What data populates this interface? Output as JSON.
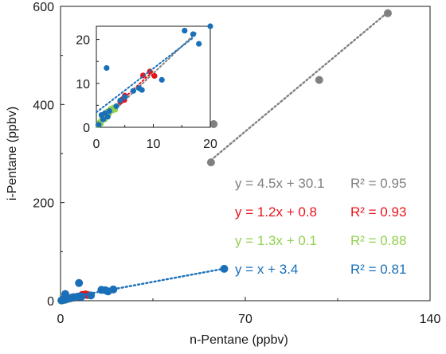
{
  "chart_data": {
    "type": "scatter",
    "xlabel": "n-Pentane  (ppbv)",
    "ylabel": "i-Pentane  (ppbv)",
    "xlim": [
      0,
      140
    ],
    "ylim": [
      0,
      600
    ],
    "x_ticks": [
      "0",
      "70",
      "140"
    ],
    "y_ticks": [
      "0",
      "200",
      "400",
      "600"
    ],
    "grid": false,
    "series": [
      {
        "color": "#808080",
        "equation": "y = 4.5x + 30.1",
        "r2": "R² = 0.95",
        "fit": {
          "slope": 4.5,
          "intercept": 30.1,
          "x_range": [
            57,
            124
          ]
        },
        "points": [
          [
            57,
            282
          ],
          [
            58,
            360
          ],
          [
            98,
            450
          ],
          [
            124,
            586
          ]
        ]
      },
      {
        "color": "#e8141c",
        "equation": "y = 1.2x + 0.8",
        "r2": "R² = 0.93",
        "fit": {
          "slope": 1.2,
          "intercept": 0.8,
          "x_range": [
            4,
            10
          ]
        },
        "points": [
          [
            4.2,
            5.8
          ],
          [
            4.6,
            6.4
          ],
          [
            4.9,
            6.2
          ],
          [
            5.0,
            7.2
          ],
          [
            8.2,
            11.8
          ],
          [
            9.4,
            12.7
          ],
          [
            10.2,
            11.7
          ]
        ]
      },
      {
        "color": "#92d050",
        "equation": "y = 1.3x + 0.1",
        "r2": "R² = 0.88",
        "fit": {
          "slope": 1.3,
          "intercept": 0.1,
          "x_range": [
            0,
            4
          ]
        },
        "points": [
          [
            0.3,
            0.5
          ],
          [
            0.6,
            1.2
          ],
          [
            1.0,
            2.0
          ],
          [
            1.3,
            2.4
          ],
          [
            1.6,
            3.0
          ],
          [
            1.9,
            3.6
          ],
          [
            2.2,
            3.0
          ],
          [
            2.5,
            4.2
          ],
          [
            2.8,
            3.8
          ],
          [
            3.0,
            4.5
          ],
          [
            3.3,
            4.0
          ],
          [
            0.8,
            0.8
          ],
          [
            1.5,
            1.8
          ]
        ]
      },
      {
        "color": "#1a70b8",
        "equation": "y = x + 3.4",
        "r2": "R² = 0.81",
        "fit": {
          "slope": 1.0,
          "intercept": 3.4,
          "x_range": [
            0,
            62
          ]
        },
        "points": [
          [
            0.4,
            0.6
          ],
          [
            0.9,
            2.8
          ],
          [
            1.2,
            1.8
          ],
          [
            1.5,
            3.2
          ],
          [
            2.0,
            2.4
          ],
          [
            2.3,
            3.7
          ],
          [
            1.8,
            13.5
          ],
          [
            3.5,
            4.8
          ],
          [
            4.2,
            6.1
          ],
          [
            5.0,
            6.9
          ],
          [
            6.5,
            8.3
          ],
          [
            7.5,
            8.9
          ],
          [
            8.0,
            8.5
          ],
          [
            11.5,
            10.8
          ],
          [
            15.5,
            22.0
          ],
          [
            17.0,
            21.2
          ],
          [
            7.0,
            36.0
          ],
          [
            18.0,
            19.0
          ],
          [
            20.0,
            23.0
          ],
          [
            62.0,
            65.0
          ]
        ]
      }
    ],
    "inset": {
      "xlim": [
        0,
        20
      ],
      "ylim": [
        0,
        23
      ],
      "x_ticks": [
        "0",
        "10",
        "20"
      ],
      "y_ticks": [
        "0",
        "10",
        "20"
      ]
    }
  }
}
